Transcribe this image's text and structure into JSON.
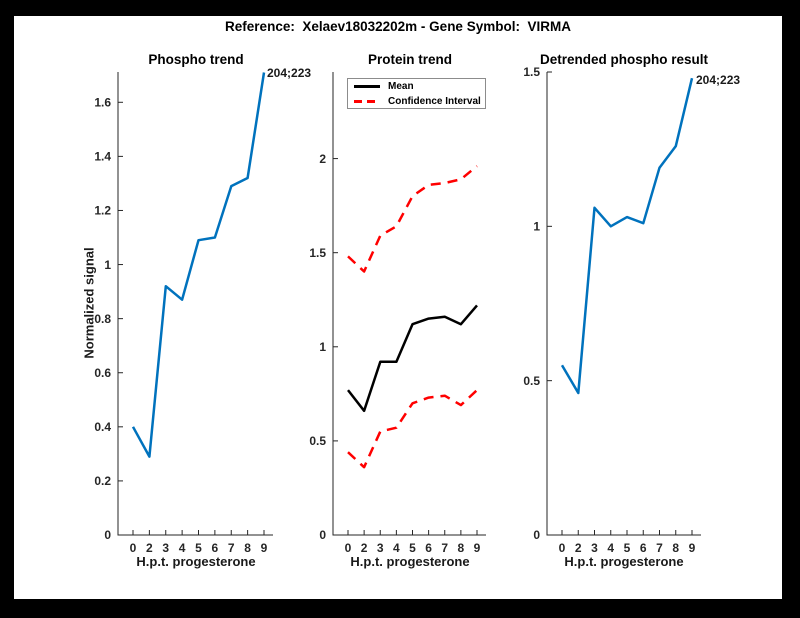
{
  "figure_title": "Reference:  Xelaev18032202m - Gene Symbol:  VIRMA",
  "palette": {
    "blue": "#0072bd",
    "red": "#ff0000",
    "black": "#000000",
    "axis": "#262626",
    "window_border": "#000000",
    "canvas": "#ffffff"
  },
  "chart_data": [
    {
      "type": "line",
      "title": "Phospho trend",
      "xlabel": "H.p.t. progesterone",
      "ylabel": "Normalized signal",
      "x_tick_labels": [
        "0",
        "2",
        "3",
        "4",
        "5",
        "6",
        "7",
        "8",
        "9"
      ],
      "yticks": [
        0,
        0.2,
        0.4,
        0.6,
        0.8,
        1,
        1.2,
        1.4,
        1.6
      ],
      "ylim": [
        0,
        1.712
      ],
      "grid": false,
      "annotation": "204;223",
      "annotation_anchor": "last-point",
      "series": [
        {
          "name": "Phospho signal",
          "color": "blue",
          "dash": false,
          "values": [
            0.4,
            0.29,
            0.92,
            0.87,
            1.09,
            1.1,
            1.29,
            1.32,
            1.71
          ]
        }
      ]
    },
    {
      "type": "line",
      "title": "Protein trend",
      "xlabel": "H.p.t. progesterone",
      "ylabel": "",
      "x_tick_labels": [
        "0",
        "2",
        "3",
        "4",
        "5",
        "6",
        "7",
        "8",
        "9"
      ],
      "yticks": [
        0,
        0.5,
        1,
        1.5,
        2
      ],
      "ylim": [
        0,
        2.46
      ],
      "grid": false,
      "legend": [
        {
          "label": "Mean",
          "style": "solid",
          "color": "black"
        },
        {
          "label": "Confidence Interval",
          "style": "dashed",
          "color": "red"
        }
      ],
      "legend_position": "northwest",
      "series": [
        {
          "name": "Mean",
          "color": "black",
          "dash": false,
          "values": [
            0.77,
            0.66,
            0.92,
            0.92,
            1.12,
            1.15,
            1.16,
            1.12,
            1.22
          ]
        },
        {
          "name": "CI upper",
          "color": "red",
          "dash": true,
          "values": [
            1.48,
            1.4,
            1.59,
            1.64,
            1.8,
            1.86,
            1.87,
            1.89,
            1.96
          ]
        },
        {
          "name": "CI lower",
          "color": "red",
          "dash": true,
          "values": [
            0.44,
            0.36,
            0.55,
            0.57,
            0.7,
            0.73,
            0.74,
            0.69,
            0.77
          ]
        }
      ]
    },
    {
      "type": "line",
      "title": "Detrended phospho result",
      "xlabel": "H.p.t. progesterone",
      "ylabel": "",
      "x_tick_labels": [
        "0",
        "2",
        "3",
        "4",
        "5",
        "6",
        "7",
        "8",
        "9"
      ],
      "yticks": [
        0,
        0.5,
        1,
        1.5
      ],
      "ylim": [
        0,
        1.5
      ],
      "grid": false,
      "annotation": "204;223",
      "annotation_anchor": "last-point",
      "series": [
        {
          "name": "Detrended phospho",
          "color": "blue",
          "dash": false,
          "values": [
            0.55,
            0.46,
            1.06,
            1.0,
            1.03,
            1.01,
            1.19,
            1.26,
            1.48
          ]
        }
      ]
    }
  ]
}
